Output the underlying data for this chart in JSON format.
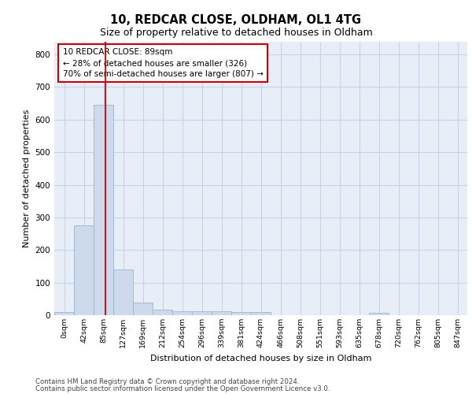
{
  "title1": "10, REDCAR CLOSE, OLDHAM, OL1 4TG",
  "title2": "Size of property relative to detached houses in Oldham",
  "xlabel": "Distribution of detached houses by size in Oldham",
  "ylabel": "Number of detached properties",
  "footer1": "Contains HM Land Registry data © Crown copyright and database right 2024.",
  "footer2": "Contains public sector information licensed under the Open Government Licence v3.0.",
  "bin_labels": [
    "0sqm",
    "42sqm",
    "85sqm",
    "127sqm",
    "169sqm",
    "212sqm",
    "254sqm",
    "296sqm",
    "339sqm",
    "381sqm",
    "424sqm",
    "466sqm",
    "508sqm",
    "551sqm",
    "593sqm",
    "635sqm",
    "678sqm",
    "720sqm",
    "762sqm",
    "805sqm",
    "847sqm"
  ],
  "bar_values": [
    10,
    275,
    645,
    140,
    38,
    18,
    13,
    12,
    12,
    10,
    10,
    0,
    0,
    0,
    0,
    0,
    8,
    0,
    0,
    0,
    0
  ],
  "bar_color": "#cddaeb",
  "bar_edge_color": "#9ab4ce",
  "vline_color": "#cc0000",
  "annotation_text": "10 REDCAR CLOSE: 89sqm\n← 28% of detached houses are smaller (326)\n70% of semi-detached houses are larger (807) →",
  "annotation_box_color": "#ffffff",
  "annotation_border_color": "#cc0000",
  "ylim": [
    0,
    840
  ],
  "yticks": [
    0,
    100,
    200,
    300,
    400,
    500,
    600,
    700,
    800
  ],
  "grid_color": "#c8d4e4",
  "bg_color": "#e8eef8"
}
